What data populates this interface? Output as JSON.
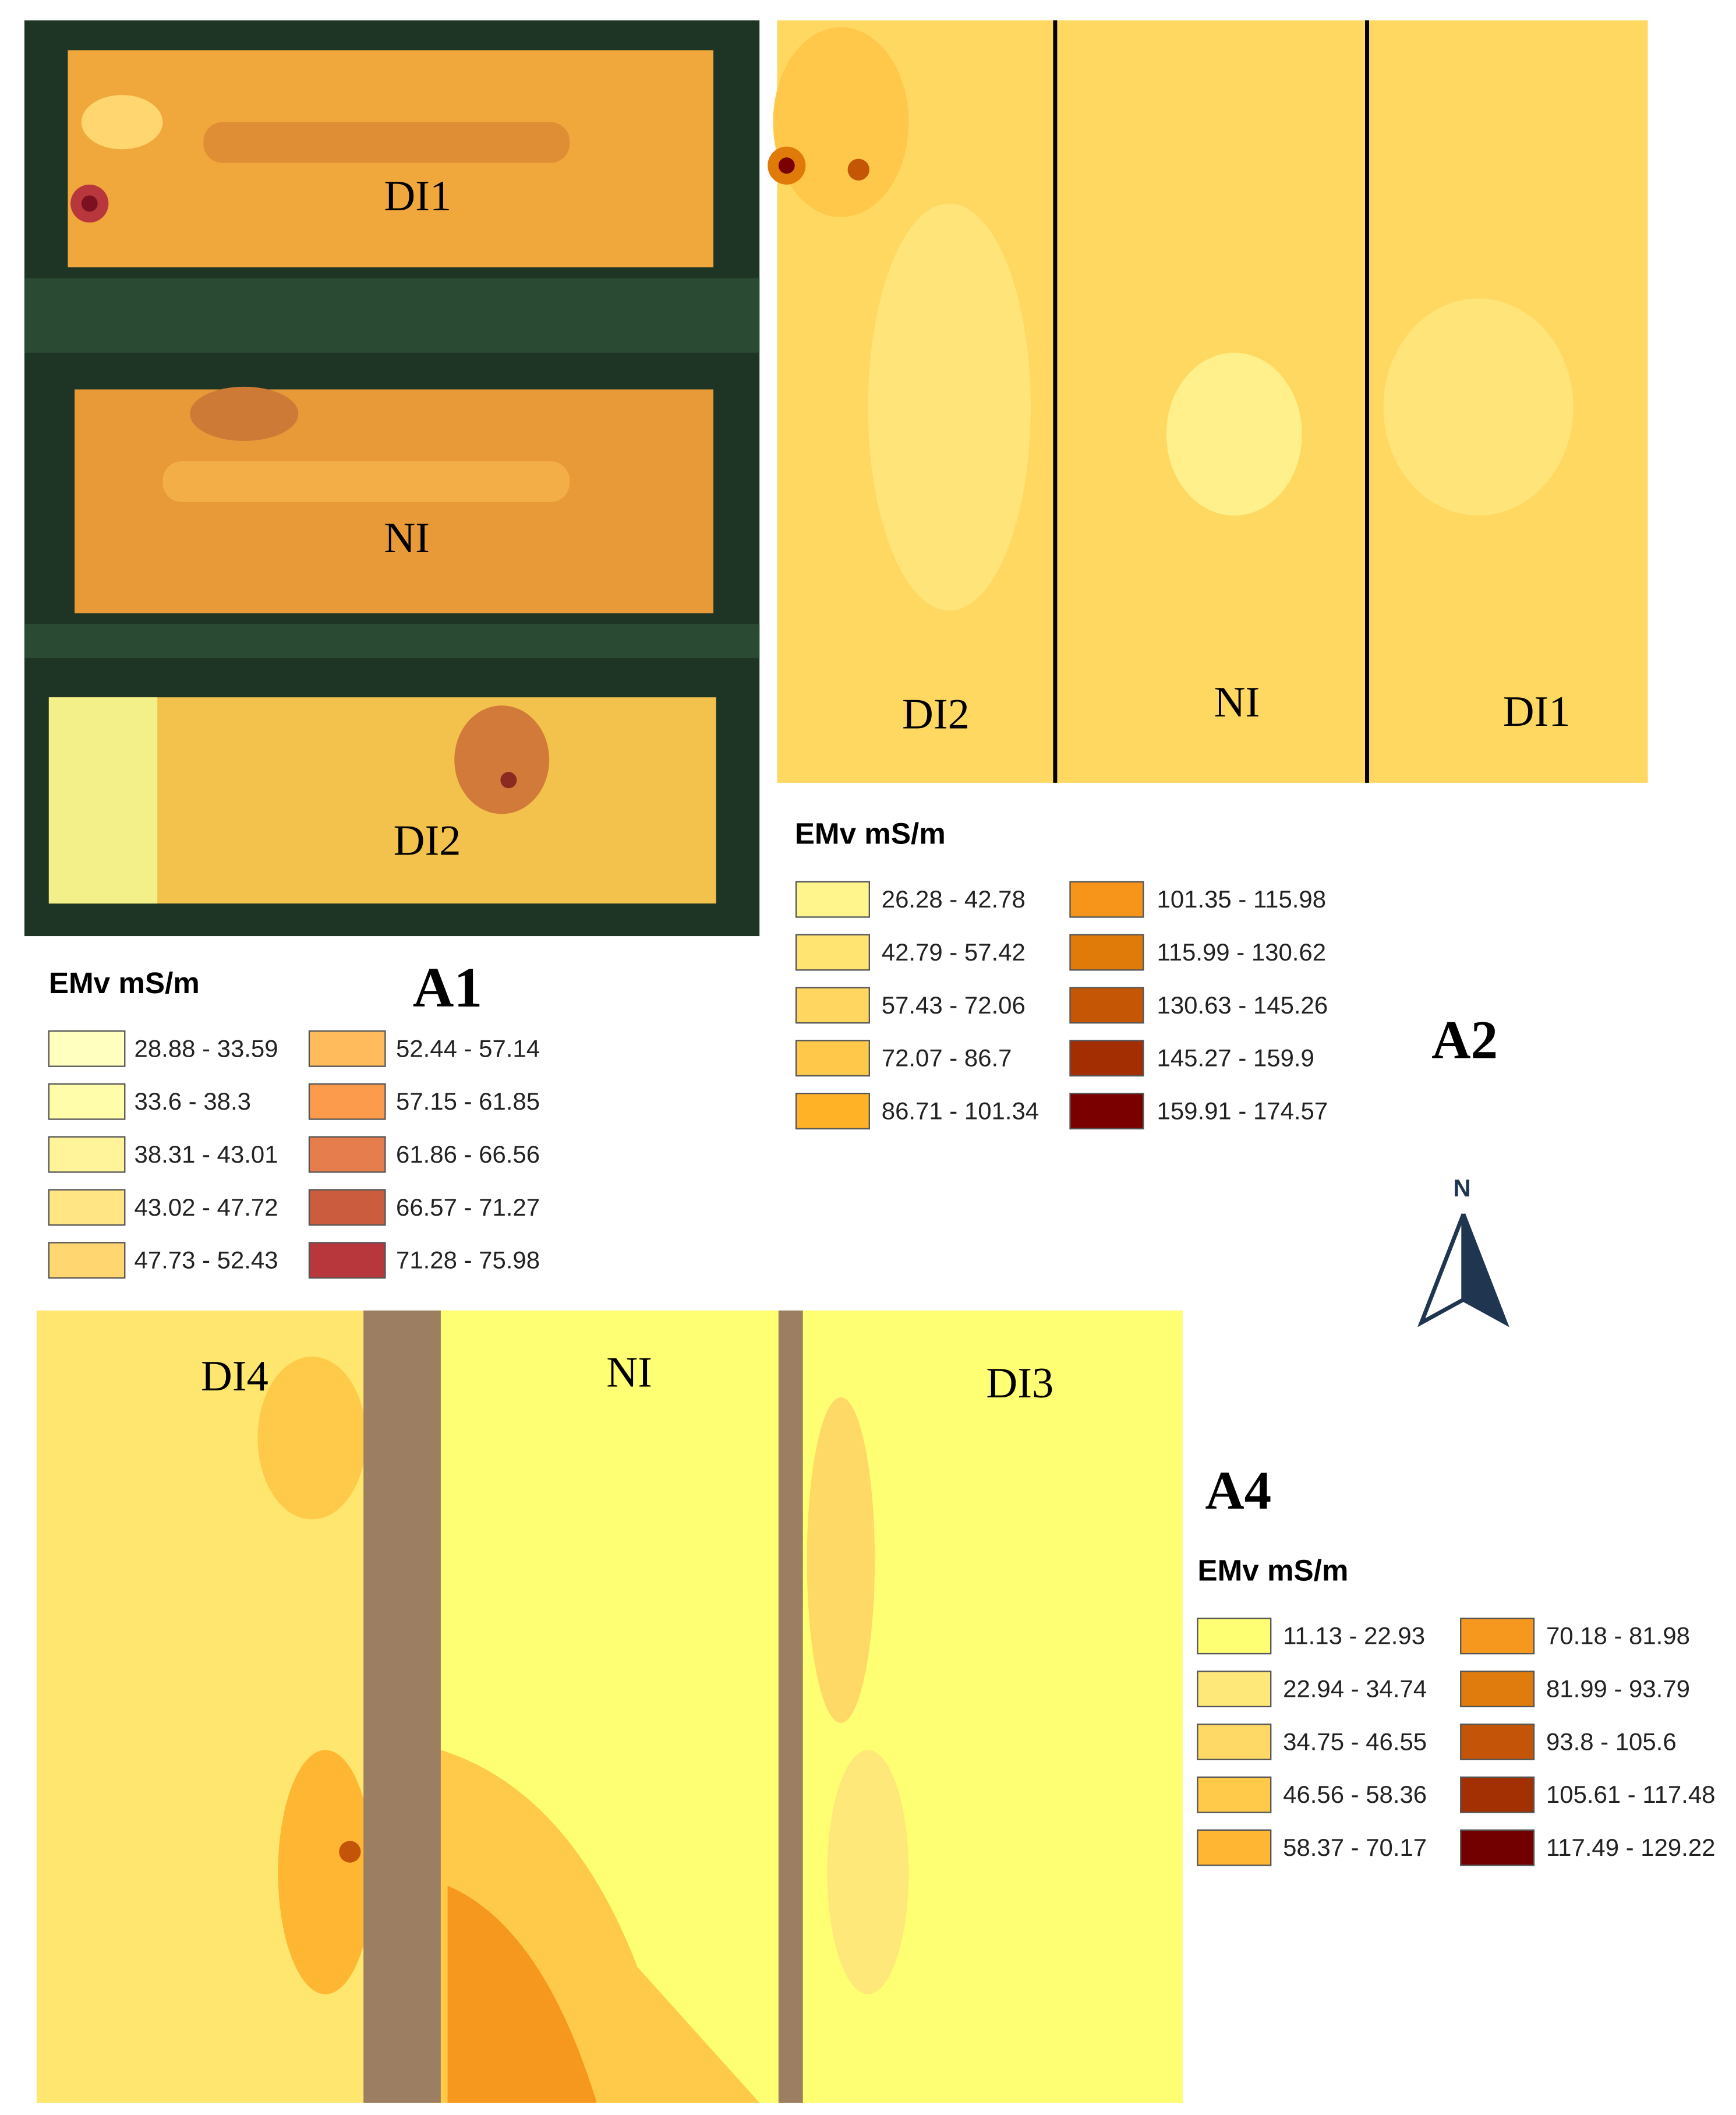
{
  "panels": [
    {
      "label": "A1",
      "fields": [
        "DI1",
        "NI",
        "DI2"
      ],
      "legend": {
        "title": "EMv mS/m",
        "classes": [
          {
            "range": "28.88 - 33.59",
            "color": "#ffffc0"
          },
          {
            "range": "33.6 - 38.3",
            "color": "#fffcaa"
          },
          {
            "range": "38.31 - 43.01",
            "color": "#fff49a"
          },
          {
            "range": "43.02 - 47.72",
            "color": "#ffe584"
          },
          {
            "range": "47.73 - 52.43",
            "color": "#ffd670"
          },
          {
            "range": "52.44 - 57.14",
            "color": "#ffbb5c"
          },
          {
            "range": "57.15 - 61.85",
            "color": "#fc9b4c"
          },
          {
            "range": "61.86 - 66.56",
            "color": "#e67d4c"
          },
          {
            "range": "66.57 - 71.27",
            "color": "#cc5c3e"
          },
          {
            "range": "71.28 - 75.98",
            "color": "#b8373d"
          }
        ]
      }
    },
    {
      "label": "A2",
      "fields": [
        "DI2",
        "NI",
        "DI1"
      ],
      "legend": {
        "title": "EMv mS/m",
        "classes": [
          {
            "range": "26.28 - 42.78",
            "color": "#fff58c"
          },
          {
            "range": "42.79 - 57.42",
            "color": "#ffe472"
          },
          {
            "range": "57.43 - 72.06",
            "color": "#ffd660"
          },
          {
            "range": "72.07 - 86.7",
            "color": "#ffc84a"
          },
          {
            "range": "86.71 - 101.34",
            "color": "#ffb226"
          },
          {
            "range": "101.35 - 115.98",
            "color": "#f7941a"
          },
          {
            "range": "115.99 - 130.62",
            "color": "#e07a08"
          },
          {
            "range": "130.63 - 145.26",
            "color": "#c55606"
          },
          {
            "range": "145.27 - 159.9",
            "color": "#a32e02"
          },
          {
            "range": "159.91 - 174.57",
            "color": "#7a0000"
          }
        ]
      }
    },
    {
      "label": "A4",
      "fields": [
        "DI4",
        "NI",
        "DI3"
      ],
      "legend": {
        "title": "EMv mS/m",
        "classes": [
          {
            "range": "11.13 - 22.93",
            "color": "#ffff73"
          },
          {
            "range": "22.94 - 34.74",
            "color": "#ffe87a"
          },
          {
            "range": "34.75 - 46.55",
            "color": "#ffd966"
          },
          {
            "range": "46.56 - 58.36",
            "color": "#ffc94a"
          },
          {
            "range": "58.37 - 70.17",
            "color": "#ffb632"
          },
          {
            "range": "70.18 - 81.98",
            "color": "#f7981e"
          },
          {
            "range": "81.99 - 93.79",
            "color": "#e07b0d"
          },
          {
            "range": "93.8 - 105.6",
            "color": "#c45508"
          },
          {
            "range": "105.61 - 117.48",
            "color": "#a33003"
          },
          {
            "range": "117.49 - 129.22",
            "color": "#730000"
          }
        ]
      }
    }
  ],
  "north": "N"
}
